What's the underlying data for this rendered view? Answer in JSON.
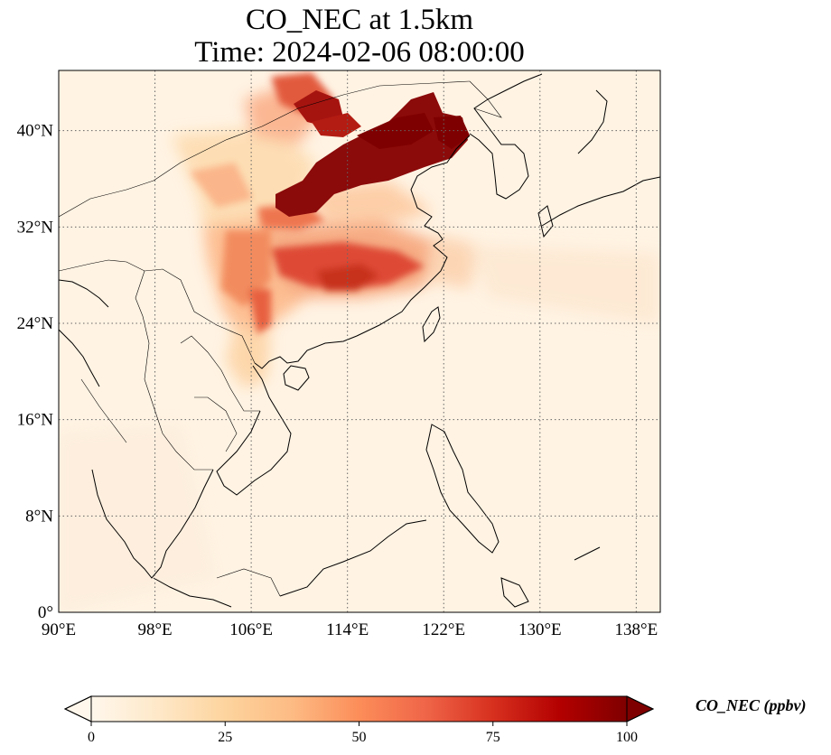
{
  "title": {
    "line1": "CO_NEC at 1.5km",
    "line2": "Time: 2024-02-06 08:00:00"
  },
  "map": {
    "projection": "PlateCarree",
    "lon_range": [
      90,
      140
    ],
    "lat_range": [
      0,
      45
    ],
    "gridlines": "dotted",
    "x_ticks": [
      {
        "lon": 90,
        "label": "90°E"
      },
      {
        "lon": 98,
        "label": "98°E"
      },
      {
        "lon": 106,
        "label": "106°E"
      },
      {
        "lon": 114,
        "label": "114°E"
      },
      {
        "lon": 122,
        "label": "122°E"
      },
      {
        "lon": 130,
        "label": "130°E"
      },
      {
        "lon": 138,
        "label": "138°E"
      }
    ],
    "y_ticks": [
      {
        "lat": 0,
        "label": "0°"
      },
      {
        "lat": 8,
        "label": "8°N"
      },
      {
        "lat": 16,
        "label": "16°N"
      },
      {
        "lat": 24,
        "label": "24°N"
      },
      {
        "lat": 32,
        "label": "32°N"
      },
      {
        "lat": 40,
        "label": "40°N"
      }
    ]
  },
  "colorbar": {
    "label": "CO_NEC (ppbv)",
    "range": [
      0,
      100
    ],
    "extend": "both",
    "colormap": "OrRd",
    "colors": [
      "#fff7ec",
      "#fee8c8",
      "#fdd49e",
      "#fdbb84",
      "#fc8d59",
      "#ef6548",
      "#d7301f",
      "#b30000",
      "#7f0000"
    ],
    "ticks": [
      {
        "value": 0,
        "label": "0"
      },
      {
        "value": 25,
        "label": "25"
      },
      {
        "value": 50,
        "label": "50"
      },
      {
        "value": 75,
        "label": "75"
      },
      {
        "value": 100,
        "label": "100"
      }
    ]
  }
}
